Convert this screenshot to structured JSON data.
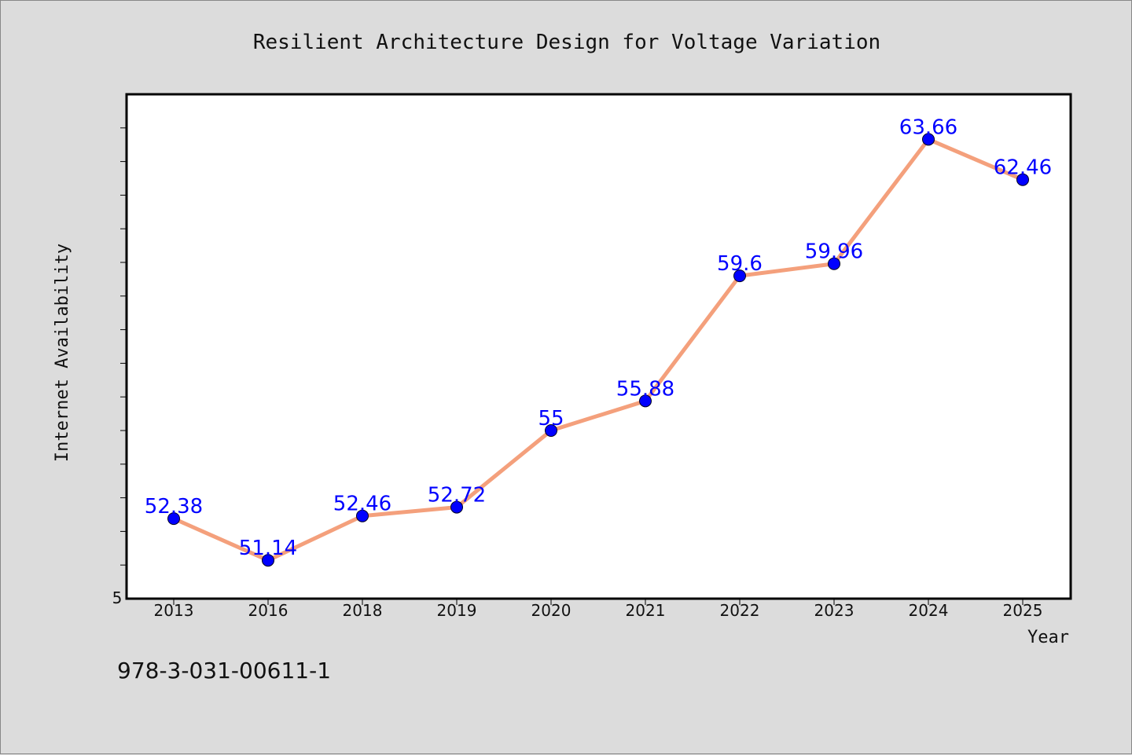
{
  "colors": {
    "background": "#dcdcdc",
    "plot_background": "#ffffff",
    "line": "#f4a07c",
    "marker": "#0000ff",
    "data_label": "#0000ff"
  },
  "footer": {
    "isbn": "978-3-031-00611-1"
  },
  "chart_data": {
    "type": "line",
    "title": "Resilient Architecture Design for Voltage Variation",
    "xlabel": "Year",
    "ylabel": "Internet Availability",
    "categories": [
      "2013",
      "2016",
      "2018",
      "2019",
      "2020",
      "2021",
      "2022",
      "2023",
      "2024",
      "2025"
    ],
    "series": [
      {
        "values": [
          52.38,
          51.14,
          52.46,
          52.72,
          55,
          55.88,
          59.6,
          59.96,
          63.66,
          62.46
        ],
        "labels": [
          "52.38",
          "51.14",
          "52.46",
          "52.72",
          "55",
          "55.88",
          "59.6",
          "59.96",
          "63.66",
          "62.46"
        ]
      }
    ],
    "ylim": [
      50,
      65
    ],
    "y_tick_label": "5",
    "grid": false,
    "legend": "none"
  }
}
